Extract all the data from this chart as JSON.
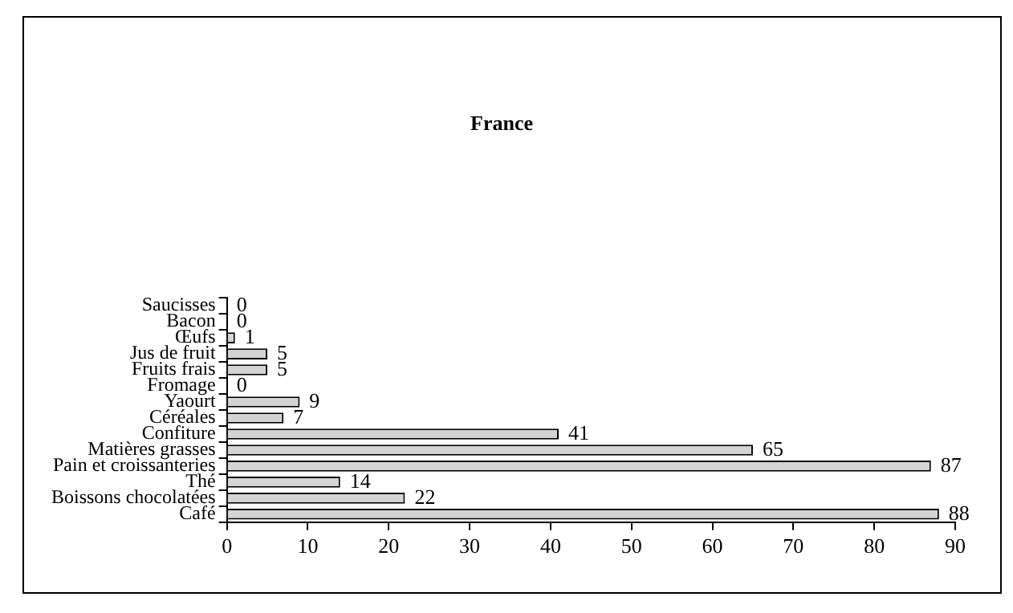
{
  "chart_data": {
    "type": "bar",
    "orientation": "horizontal",
    "title": "France",
    "categories": [
      "Saucisses",
      "Bacon",
      "Œufs",
      "Jus de fruit",
      "Fruits frais",
      "Fromage",
      "Yaourt",
      "Céréales",
      "Confiture",
      "Matières grasses",
      "Pain et croissanteries",
      "Thé",
      "Boissons chocolatées",
      "Café"
    ],
    "values": [
      0,
      0,
      1,
      5,
      5,
      0,
      9,
      7,
      41,
      65,
      87,
      14,
      22,
      88
    ],
    "color": "#d4d4d4",
    "xlim": [
      0,
      90
    ],
    "xticks": [
      0,
      10,
      20,
      30,
      40,
      50,
      60,
      70,
      80,
      90
    ],
    "data_labels": true,
    "grid": false,
    "legend": false
  }
}
